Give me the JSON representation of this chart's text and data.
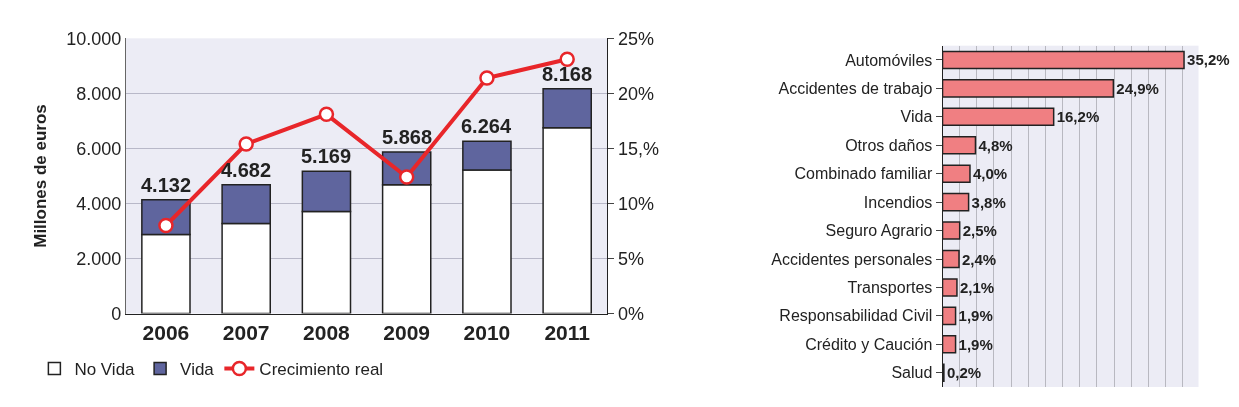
{
  "chart_data": [
    {
      "type": "bar",
      "stacked": true,
      "ylabel": "Millones de euros",
      "categories": [
        "2006",
        "2007",
        "2008",
        "2009",
        "2010",
        "2011"
      ],
      "series": [
        {
          "name": "No Vida",
          "color": "#ffffff",
          "values": [
            2870,
            3270,
            3710,
            4680,
            5220,
            6750
          ]
        },
        {
          "name": "Vida",
          "color": "#5f659e",
          "values": [
            1262,
            1412,
            1459,
            1188,
            1044,
            1418
          ]
        },
        {
          "name": "Crecimiento real",
          "type": "line",
          "axis": "y2",
          "color": "#e8262a",
          "marker": "circle",
          "values": [
            8.0,
            15.4,
            18.1,
            12.4,
            21.4,
            23.1
          ]
        }
      ],
      "totals": [
        "4.132",
        "4.682",
        "5.169",
        "5.868",
        "6.264",
        "8.168"
      ],
      "ylim": [
        0,
        10000
      ],
      "yticks": [
        0,
        {
          "value": 2000,
          "label": "2.000"
        },
        {
          "value": 4000,
          "label": "4.000"
        },
        {
          "value": 6000,
          "label": "6.000"
        },
        {
          "value": 8000,
          "label": "8.000"
        },
        {
          "value": 10000,
          "label": "10.000"
        }
      ],
      "y2lim": [
        0,
        25
      ],
      "y2ticks": [
        {
          "value": 0,
          "label": "0%"
        },
        {
          "value": 5,
          "label": "5%"
        },
        {
          "value": 10,
          "label": "10%"
        },
        {
          "value": 15,
          "label": "15,%"
        },
        {
          "value": 20,
          "label": "20%"
        },
        {
          "value": 25,
          "label": "25%"
        }
      ],
      "grid": "y",
      "legend": "bottom"
    },
    {
      "type": "bar",
      "orientation": "horizontal",
      "categories": [
        "Automóviles",
        "Accidentes de trabajo",
        "Vida",
        "Otros daños",
        "Combinado familiar",
        "Incendios",
        "Seguro Agrario",
        "Accidentes personales",
        "Transportes",
        "Responsabilidad Civil",
        "Crédito y Caución",
        "Salud"
      ],
      "series": [
        {
          "color": "#f07f82",
          "values": [
            35.2,
            24.9,
            16.2,
            4.8,
            4.0,
            3.8,
            2.5,
            2.4,
            2.1,
            1.9,
            1.9,
            0.2
          ],
          "value_labels": [
            "35,2%",
            "24,9%",
            "16,2%",
            "4,8%",
            "4,0%",
            "3,8%",
            "2,5%",
            "2,4%",
            "2,1%",
            "1,9%",
            "1,9%",
            "0,2%"
          ]
        }
      ],
      "grid": "x",
      "tick_labels": "y"
    }
  ]
}
